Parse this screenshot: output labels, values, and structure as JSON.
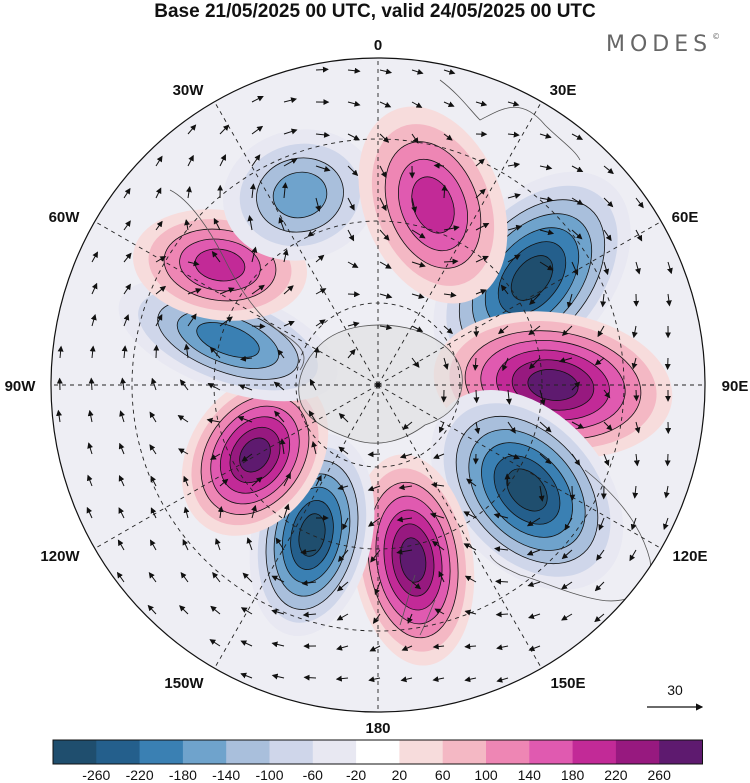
{
  "title": "Base 21/05/2025 00 UTC, valid 24/05/2025 00 UTC",
  "brand": "MODES",
  "brand_mark": "©",
  "longitude_labels": {
    "lon_0": "0",
    "lon_30e": "30E",
    "lon_60e": "60E",
    "lon_90e": "90E",
    "lon_120e": "120E",
    "lon_150e": "150E",
    "lon_180": "180",
    "lon_150w": "150W",
    "lon_120w": "120W",
    "lon_90w": "90W",
    "lon_60w": "60W",
    "lon_30w": "30W"
  },
  "reference_vector": {
    "label": "30"
  },
  "colorbar": {
    "colors": [
      "#1f4e6e",
      "#245f8c",
      "#3a80b3",
      "#6fa3cc",
      "#a9bfdc",
      "#cfd6ea",
      "#e8e8f2",
      "#ffffff",
      "#f7dcdc",
      "#f4b8c4",
      "#ee86b4",
      "#e05ab0",
      "#c22a97",
      "#97197f",
      "#5e1a6f"
    ],
    "labels": [
      "-260",
      "-220",
      "-180",
      "-140",
      "-100",
      "-60",
      "-20",
      "20",
      "60",
      "100",
      "140",
      "180",
      "220",
      "260"
    ]
  },
  "anomaly_lobes": [
    {
      "sign": "neg",
      "magnitude": 260
    },
    {
      "sign": "pos",
      "magnitude": 260
    },
    {
      "sign": "neg",
      "magnitude": 260
    },
    {
      "sign": "pos",
      "magnitude": 260
    },
    {
      "sign": "neg",
      "magnitude": 260
    },
    {
      "sign": "pos",
      "magnitude": 260
    },
    {
      "sign": "neg",
      "magnitude": 180
    },
    {
      "sign": "pos",
      "magnitude": 180
    },
    {
      "sign": "neg",
      "magnitude": 140
    },
    {
      "sign": "pos",
      "magnitude": 180
    }
  ]
}
